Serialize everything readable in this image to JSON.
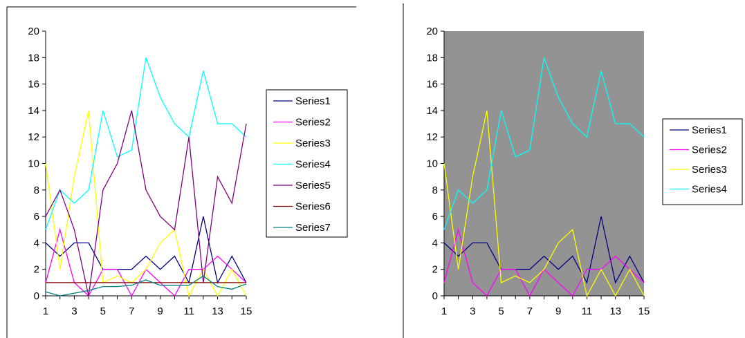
{
  "chart_data": [
    {
      "type": "line",
      "x": [
        1,
        2,
        3,
        4,
        5,
        6,
        7,
        8,
        9,
        10,
        11,
        12,
        13,
        14,
        15
      ],
      "x_ticks": [
        "1",
        "3",
        "5",
        "7",
        "9",
        "11",
        "13",
        "15"
      ],
      "y_ticks": [
        "0",
        "2",
        "4",
        "6",
        "8",
        "10",
        "12",
        "14",
        "16",
        "18",
        "20"
      ],
      "ylim": [
        0,
        20
      ],
      "plot_background": "#ffffff",
      "legend_position": "right",
      "series": [
        {
          "name": "Series1",
          "color": "#000080",
          "values": [
            4,
            3,
            4,
            4,
            2,
            2,
            2,
            3,
            2,
            3,
            1,
            6,
            1,
            3,
            1
          ]
        },
        {
          "name": "Series2",
          "color": "#ff00ff",
          "values": [
            1,
            5,
            1,
            0,
            2,
            2,
            0,
            2,
            1,
            0,
            2,
            2,
            3,
            2,
            1
          ]
        },
        {
          "name": "Series3",
          "color": "#ffff00",
          "values": [
            10,
            2,
            9,
            14,
            1,
            1.5,
            1,
            2,
            4,
            5,
            0,
            2,
            0,
            2,
            0
          ]
        },
        {
          "name": "Series4",
          "color": "#00ffff",
          "values": [
            5,
            8,
            7,
            8,
            14,
            10.5,
            11,
            18,
            15,
            13,
            12,
            17,
            13,
            13,
            12
          ]
        },
        {
          "name": "Series5",
          "color": "#800080",
          "values": [
            6,
            8,
            5,
            0,
            8,
            10,
            14,
            8,
            6,
            5,
            12,
            1,
            9,
            7,
            13
          ]
        },
        {
          "name": "Series6",
          "color": "#800000",
          "values": [
            1,
            1,
            1,
            1,
            1,
            1,
            1,
            1,
            1,
            1,
            1,
            1,
            1,
            1,
            1
          ]
        },
        {
          "name": "Series7",
          "color": "#008080",
          "values": [
            0.3,
            0,
            0.2,
            0.4,
            0.7,
            0.7,
            0.8,
            1.2,
            0.8,
            0.8,
            0.8,
            1.5,
            0.7,
            0.5,
            0.9
          ]
        }
      ]
    },
    {
      "type": "line",
      "x": [
        1,
        2,
        3,
        4,
        5,
        6,
        7,
        8,
        9,
        10,
        11,
        12,
        13,
        14,
        15
      ],
      "x_ticks": [
        "1",
        "3",
        "5",
        "7",
        "9",
        "11",
        "13",
        "15"
      ],
      "y_ticks": [
        "0",
        "2",
        "4",
        "6",
        "8",
        "10",
        "12",
        "14",
        "16",
        "18",
        "20"
      ],
      "ylim": [
        0,
        20
      ],
      "plot_background": "#939393",
      "legend_position": "right",
      "series": [
        {
          "name": "Series1",
          "color": "#000080",
          "values": [
            4,
            3,
            4,
            4,
            2,
            2,
            2,
            3,
            2,
            3,
            1,
            6,
            1,
            3,
            1
          ]
        },
        {
          "name": "Series2",
          "color": "#ff00ff",
          "values": [
            1,
            5,
            1,
            0,
            2,
            2,
            0,
            2,
            1,
            0,
            2,
            2,
            3,
            2,
            1
          ]
        },
        {
          "name": "Series3",
          "color": "#ffff00",
          "values": [
            10,
            2,
            9,
            14,
            1,
            1.5,
            1,
            2,
            4,
            5,
            0,
            2,
            0,
            2,
            0
          ]
        },
        {
          "name": "Series4",
          "color": "#00ffff",
          "values": [
            5,
            8,
            7,
            8,
            14,
            10.5,
            11,
            18,
            15,
            13,
            12,
            17,
            13,
            13,
            12
          ]
        }
      ]
    }
  ]
}
